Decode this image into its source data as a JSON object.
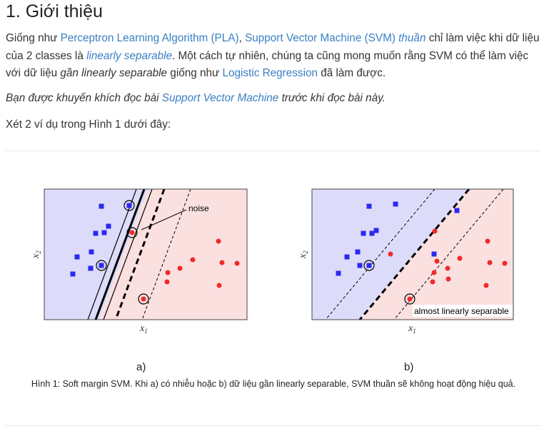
{
  "heading": "1. Giới thiệu",
  "para1": {
    "t1": "Giống như ",
    "link_pla": "Perceptron Learning Algorithm (PLA)",
    "t2": ", ",
    "link_svm": "Support Vector Machine (SVM)",
    "t3": " ",
    "link_thuan": "thuần",
    "t4": " chỉ làm việc khi dữ liệu của 2 classes là ",
    "link_ls": "linearly separable",
    "t5": ". Một cách tự nhiên, chúng ta cũng mong muốn rằng SVM có thể làm việc với dữ liệu ",
    "em_gan": "gần linearly separable",
    "t6": " giống như ",
    "link_lr": "Logistic Regression",
    "t7": " đã làm được."
  },
  "para2": {
    "t1": "Bạn được khuyến khích đọc bài ",
    "link_svm": "Support Vector Machine",
    "t2": " trước khi đọc bài này."
  },
  "para3": "Xét 2 ví dụ trong Hình 1 dưới đây:",
  "figure": {
    "panel_a": {
      "xlabel": "x",
      "xlabel_sub": "1",
      "ylabel": "x",
      "ylabel_sub": "2",
      "annotation": "noise",
      "label": "a)"
    },
    "panel_b": {
      "xlabel": "x",
      "xlabel_sub": "1",
      "ylabel": "x",
      "ylabel_sub": "2",
      "annotation": "almost linearly separable",
      "label": "b)"
    },
    "caption": "Hình 1: Soft margin SVM. Khi a) có nhiễu hoặc b) dữ liệu gần linearly separable, SVM thuần sẽ không hoạt động hiệu quả.",
    "colors": {
      "blue_region": "#dcdcfa",
      "red_region": "#fbe0e0",
      "blue_point": "#2a2af0",
      "red_point": "#f02a2a"
    }
  }
}
